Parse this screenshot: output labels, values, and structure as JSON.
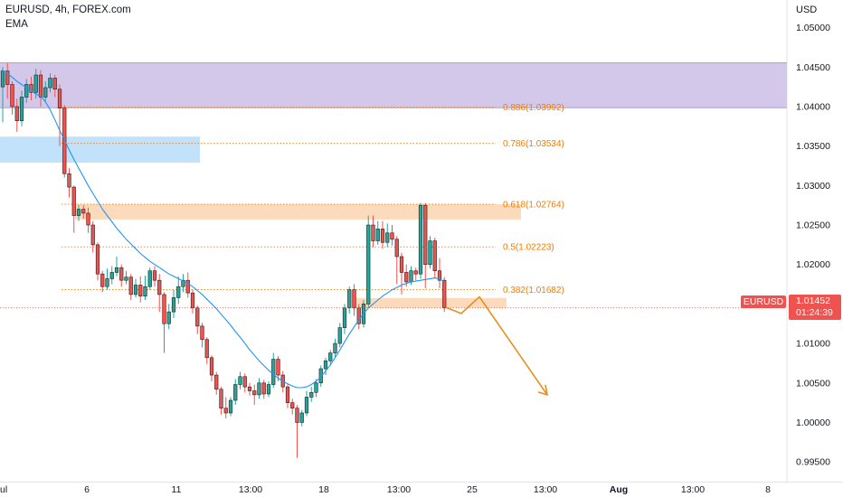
{
  "header": {
    "symbol_title": "EURUSD, 4h, FOREX.com",
    "indicator": "EMA",
    "currency": "USD"
  },
  "price_tag": {
    "symbol": "EURUSD",
    "price": "1.01452",
    "countdown": "01:24:39",
    "color": "#ef5350"
  },
  "colors": {
    "up": "#26a69a",
    "down": "#ef5350",
    "ema": "#2196f3",
    "fib": "#f57c00",
    "supply_zone": "#d1c4e9",
    "blue_zone": "#bbdefb",
    "orange_zone": "#fbd5b1"
  },
  "chart_data": {
    "type": "candlestick",
    "timeframe": "4h",
    "y_axis": {
      "ticks": [
        "1.05000",
        "1.04500",
        "1.04000",
        "1.03500",
        "1.03000",
        "1.02500",
        "1.02000",
        "1.01500",
        "1.01000",
        "1.00500",
        "1.00000",
        "0.99500"
      ],
      "ylim": [
        0.9925,
        1.0535
      ]
    },
    "x_axis": {
      "ticks": [
        "ul",
        "6",
        "11",
        "13:00",
        "18",
        "13:00",
        "25",
        "13:00",
        "Aug",
        "13:00",
        "8"
      ]
    },
    "fib_levels": [
      {
        "label": "0.886(1.03992)",
        "price": 1.03992
      },
      {
        "label": "0.786(1.03534)",
        "price": 1.03534
      },
      {
        "label": "0.618(1.02764)",
        "price": 1.02764
      },
      {
        "label": "0.5(1.02223)",
        "price": 1.02223
      },
      {
        "label": "0.382(1.01682)",
        "price": 1.01682
      }
    ],
    "zones": [
      {
        "name": "supply-zone",
        "from": 1.03985,
        "to": 1.04555
      },
      {
        "name": "blue-zone",
        "from": 1.0329,
        "to": 1.0362
      },
      {
        "name": "orange-zone-upper",
        "from": 1.0257,
        "to": 1.02765
      },
      {
        "name": "orange-zone-lower",
        "from": 1.0145,
        "to": 1.01575
      }
    ],
    "projection": [
      1.01452,
      1.0138,
      1.0159,
      1.0035
    ],
    "last_price": 1.01452,
    "candles": [
      [
        1.0425,
        1.0445,
        1.038,
        1.045
      ],
      [
        1.0445,
        1.0428,
        1.041,
        1.0455
      ],
      [
        1.0428,
        1.04,
        1.039,
        1.0432
      ],
      [
        1.04,
        1.0382,
        1.0368,
        1.041
      ],
      [
        1.0382,
        1.0412,
        1.0375,
        1.042
      ],
      [
        1.0412,
        1.0428,
        1.0405,
        1.0435
      ],
      [
        1.0428,
        1.0418,
        1.0408,
        1.0438
      ],
      [
        1.0418,
        1.044,
        1.041,
        1.0448
      ],
      [
        1.044,
        1.0412,
        1.04,
        1.0446
      ],
      [
        1.0412,
        1.0424,
        1.0405,
        1.0432
      ],
      [
        1.0424,
        1.0436,
        1.0418,
        1.0442
      ],
      [
        1.0436,
        1.0422,
        1.0412,
        1.044
      ],
      [
        1.0422,
        1.0398,
        1.035,
        1.0428
      ],
      [
        1.0398,
        1.0315,
        1.031,
        1.0402
      ],
      [
        1.0315,
        1.0298,
        1.0285,
        1.0322
      ],
      [
        1.0298,
        1.0262,
        1.024,
        1.03
      ],
      [
        1.0262,
        1.027,
        1.0255,
        1.0275
      ],
      [
        1.027,
        1.0265,
        1.0258,
        1.0275
      ],
      [
        1.0265,
        1.025,
        1.024,
        1.0272
      ],
      [
        1.025,
        1.0225,
        1.0215,
        1.0255
      ],
      [
        1.0225,
        1.0188,
        1.018,
        1.0228
      ],
      [
        1.0188,
        1.0172,
        1.0165,
        1.0192
      ],
      [
        1.0172,
        1.0182,
        1.0168,
        1.0195
      ],
      [
        1.0182,
        1.019,
        1.0175,
        1.0198
      ],
      [
        1.019,
        1.0196,
        1.0185,
        1.021
      ],
      [
        1.0196,
        1.018,
        1.0172,
        1.02
      ],
      [
        1.018,
        1.0184,
        1.0175,
        1.0192
      ],
      [
        1.0184,
        1.0162,
        1.0155,
        1.0188
      ],
      [
        1.0162,
        1.0174,
        1.0158,
        1.0182
      ],
      [
        1.0174,
        1.016,
        1.0152,
        1.0185
      ],
      [
        1.016,
        1.0172,
        1.0155,
        1.0186
      ],
      [
        1.0172,
        1.0192,
        1.0168,
        1.0196
      ],
      [
        1.0192,
        1.018,
        1.0172,
        1.0198
      ],
      [
        1.018,
        1.0162,
        1.014,
        1.0188
      ],
      [
        1.0162,
        1.0125,
        1.0088,
        1.0165
      ],
      [
        1.0125,
        1.014,
        1.0118,
        1.015
      ],
      [
        1.014,
        1.0158,
        1.0132,
        1.0168
      ],
      [
        1.0158,
        1.0172,
        1.015,
        1.0185
      ],
      [
        1.0172,
        1.018,
        1.0165,
        1.0188
      ],
      [
        1.018,
        1.0164,
        1.0158,
        1.019
      ],
      [
        1.0164,
        1.0145,
        1.0138,
        1.0168
      ],
      [
        1.0145,
        1.0122,
        1.0112,
        1.0148
      ],
      [
        1.0122,
        1.0105,
        1.0095,
        1.0126
      ],
      [
        1.0105,
        1.0082,
        1.0074,
        1.0108
      ],
      [
        1.0082,
        1.006,
        1.0052,
        1.0085
      ],
      [
        1.006,
        1.0042,
        1.0035,
        1.0064
      ],
      [
        1.0042,
        1.0018,
        1.001,
        1.0045
      ],
      [
        1.0018,
        1.0012,
        1.0005,
        1.0032
      ],
      [
        1.0012,
        1.0028,
        1.0008,
        1.0032
      ],
      [
        1.0028,
        1.0048,
        1.0022,
        1.0055
      ],
      [
        1.0048,
        1.0058,
        1.0042,
        1.0064
      ],
      [
        1.0058,
        1.0045,
        1.0038,
        1.0062
      ],
      [
        1.0045,
        1.004,
        1.0034,
        1.005
      ],
      [
        1.004,
        1.0035,
        1.0022,
        1.0048
      ],
      [
        1.0035,
        1.005,
        1.003,
        1.0056
      ],
      [
        1.005,
        1.0036,
        1.003,
        1.0054
      ],
      [
        1.0036,
        1.0048,
        1.0032,
        1.0052
      ],
      [
        1.0048,
        1.008,
        1.0044,
        1.0088
      ],
      [
        1.008,
        1.006,
        1.0052,
        1.0084
      ],
      [
        1.006,
        1.0045,
        1.0038,
        1.0065
      ],
      [
        1.0045,
        1.0025,
        1.0018,
        1.0048
      ],
      [
        1.0025,
        1.0018,
        1.001,
        1.003
      ],
      [
        1.0018,
        1.0,
        0.9955,
        1.0022
      ],
      [
        1.0,
        1.0012,
        0.9995,
        1.0016
      ],
      [
        1.0012,
        1.0032,
        1.0008,
        1.004
      ],
      [
        1.0032,
        1.0038,
        1.0026,
        1.0045
      ],
      [
        1.0038,
        1.005,
        1.0032,
        1.0055
      ],
      [
        1.005,
        1.0068,
        1.0045,
        1.0072
      ],
      [
        1.0068,
        1.0078,
        1.006,
        1.0082
      ],
      [
        1.0078,
        1.0088,
        1.0072,
        1.0092
      ],
      [
        1.0088,
        1.01,
        1.0082,
        1.0106
      ],
      [
        1.01,
        1.012,
        1.0095,
        1.0126
      ],
      [
        1.012,
        1.0145,
        1.0112,
        1.015
      ],
      [
        1.0145,
        1.0168,
        1.0138,
        1.0172
      ],
      [
        1.0168,
        1.0145,
        1.0135,
        1.0175
      ],
      [
        1.0145,
        1.0125,
        1.0118,
        1.015
      ],
      [
        1.0125,
        1.015,
        1.012,
        1.0155
      ],
      [
        1.015,
        1.025,
        1.0145,
        1.0262
      ],
      [
        1.025,
        1.023,
        1.0222,
        1.0262
      ],
      [
        1.023,
        1.0245,
        1.0225,
        1.0255
      ],
      [
        1.0245,
        1.0228,
        1.022,
        1.0255
      ],
      [
        1.0228,
        1.024,
        1.0222,
        1.0252
      ],
      [
        1.024,
        1.0232,
        1.0224,
        1.025
      ],
      [
        1.0232,
        1.021,
        1.0175,
        1.0236
      ],
      [
        1.021,
        1.019,
        1.0162,
        1.0215
      ],
      [
        1.019,
        1.0178,
        1.0172,
        1.02
      ],
      [
        1.0178,
        1.0192,
        1.0174,
        1.0198
      ],
      [
        1.0192,
        1.0188,
        1.018,
        1.0196
      ],
      [
        1.0188,
        1.0275,
        1.0182,
        1.0278
      ],
      [
        1.0275,
        1.02,
        1.017,
        1.0278
      ],
      [
        1.02,
        1.023,
        1.0195,
        1.0236
      ],
      [
        1.023,
        1.0192,
        1.0182,
        1.0234
      ],
      [
        1.0192,
        1.018,
        1.017,
        1.0208
      ],
      [
        1.018,
        1.0145,
        1.014,
        1.0184
      ]
    ],
    "ema": [
      1.0446,
      1.0442,
      1.0437,
      1.0432,
      1.0428,
      1.0424,
      1.042,
      1.0416,
      1.0413,
      1.0406,
      1.0396,
      1.0383,
      1.037,
      1.0358,
      1.0345,
      1.0333,
      1.0322,
      1.0311,
      1.03,
      1.029,
      1.028,
      1.027,
      1.0262,
      1.0254,
      1.0246,
      1.0239,
      1.0232,
      1.0226,
      1.022,
      1.0214,
      1.0209,
      1.0204,
      1.02,
      1.0196,
      1.0192,
      1.0188,
      1.0185,
      1.0182,
      1.0179,
      1.0176,
      1.0172,
      1.0167,
      1.0162,
      1.0156,
      1.015,
      1.0144,
      1.0137,
      1.013,
      1.0123,
      1.0115,
      1.0108,
      1.01,
      1.0092,
      1.0085,
      1.0078,
      1.0072,
      1.0066,
      1.0061,
      1.0056,
      1.0052,
      1.0049,
      1.0046,
      1.0044,
      1.0044,
      1.0045,
      1.0048,
      1.0052,
      1.0058,
      1.0065,
      1.0073,
      1.0082,
      1.0092,
      1.0102,
      1.0112,
      1.0121,
      1.013,
      1.0138,
      1.0145,
      1.015,
      1.0155,
      1.016,
      1.0164,
      1.0168,
      1.0171,
      1.0174,
      1.0176,
      1.0178,
      1.0179,
      1.018,
      1.0181,
      1.0182,
      1.0183,
      1.0182,
      1.0178
    ]
  }
}
